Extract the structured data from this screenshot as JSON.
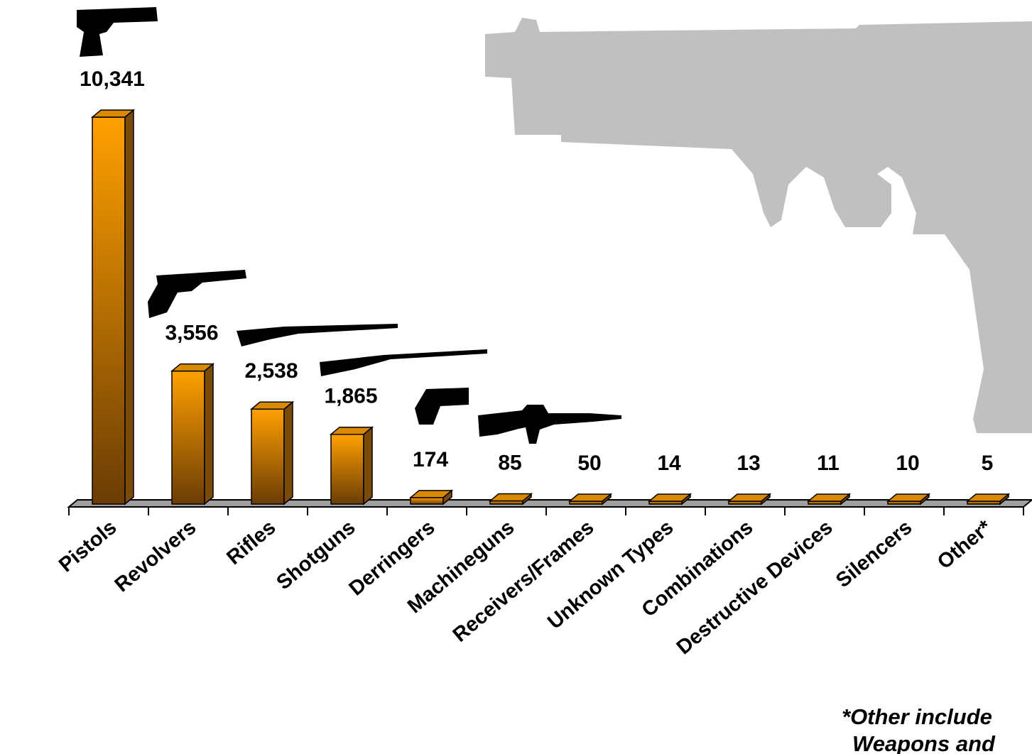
{
  "chart_data": {
    "type": "bar",
    "categories": [
      "Pistols",
      "Revolvers",
      "Rifles",
      "Shotguns",
      "Derringers",
      "Machineguns",
      "Receivers/Frames",
      "Unknown Types",
      "Combinations",
      "Destructive Devices",
      "Silencers",
      "Other*"
    ],
    "values": [
      10341,
      3556,
      2538,
      1865,
      174,
      85,
      50,
      14,
      13,
      11,
      10,
      5
    ],
    "value_labels": [
      "10,341",
      "3,556",
      "2,538",
      "1,865",
      "174",
      "85",
      "50",
      "14",
      "13",
      "11",
      "10",
      "5"
    ],
    "color": "#ff9f00",
    "notes": [
      "*Other include",
      "Weapons and"
    ]
  }
}
